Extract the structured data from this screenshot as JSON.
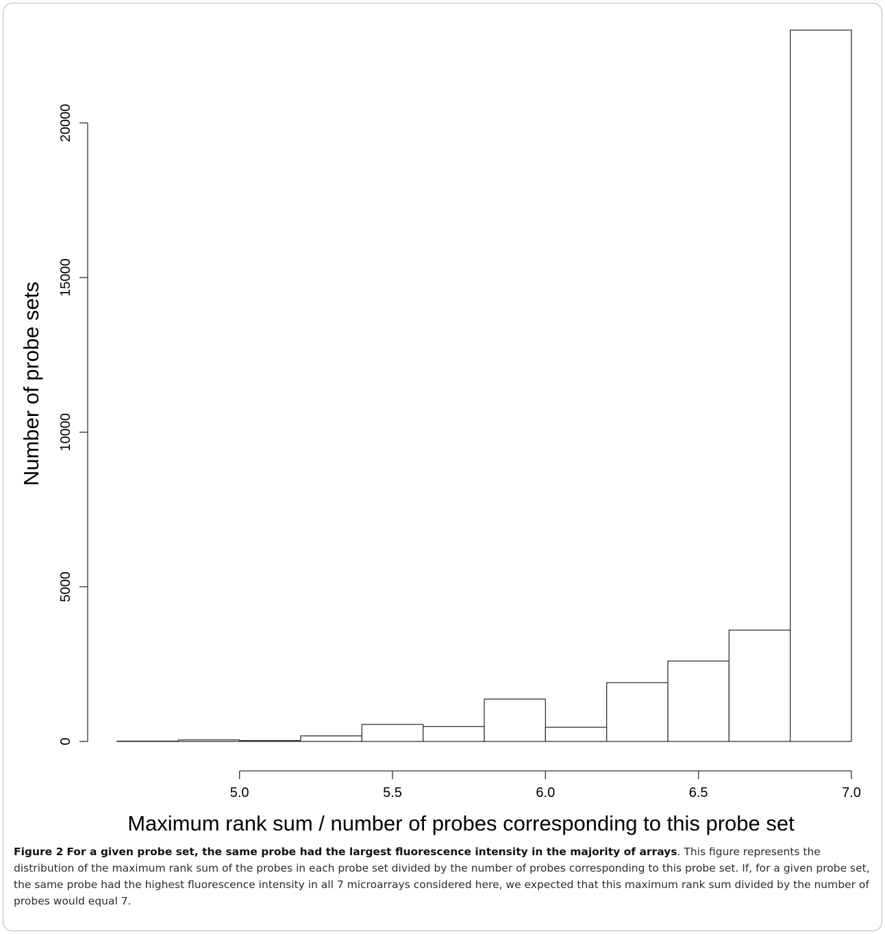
{
  "chart_data": {
    "type": "bar",
    "subtype": "histogram",
    "xlabel": "Maximum rank sum / number of probes corresponding to this probe set",
    "ylabel": "Number of probe sets",
    "xlim": [
      4.6,
      7.0
    ],
    "ylim": [
      0,
      23000
    ],
    "x_ticks": [
      5.0,
      5.5,
      6.0,
      6.5,
      7.0
    ],
    "x_tick_labels": [
      "5.0",
      "5.5",
      "6.0",
      "6.5",
      "7.0"
    ],
    "y_ticks": [
      0,
      5000,
      10000,
      15000,
      20000
    ],
    "y_tick_labels": [
      "0",
      "5000",
      "10000",
      "15000",
      "20000"
    ],
    "bins": [
      {
        "start": 4.6,
        "end": 4.8,
        "count": 10
      },
      {
        "start": 4.8,
        "end": 5.0,
        "count": 50
      },
      {
        "start": 5.0,
        "end": 5.2,
        "count": 30
      },
      {
        "start": 5.2,
        "end": 5.4,
        "count": 180
      },
      {
        "start": 5.4,
        "end": 5.6,
        "count": 550
      },
      {
        "start": 5.6,
        "end": 5.8,
        "count": 480
      },
      {
        "start": 5.8,
        "end": 6.0,
        "count": 1370
      },
      {
        "start": 6.0,
        "end": 6.2,
        "count": 460
      },
      {
        "start": 6.2,
        "end": 6.4,
        "count": 1900
      },
      {
        "start": 6.4,
        "end": 6.6,
        "count": 2600
      },
      {
        "start": 6.6,
        "end": 6.8,
        "count": 3600
      },
      {
        "start": 6.8,
        "end": 7.0,
        "count": 23000
      }
    ],
    "grid": false,
    "bar_fill": "#ffffff",
    "bar_stroke": "#333333"
  },
  "caption": {
    "label": "Figure 2",
    "title": "For a given probe set, the same probe had the largest fluorescence intensity in the majority of arrays",
    "text": ". This figure represents the distribution of the maximum rank sum of the probes in each probe set divided by the number of probes corresponding to this probe set. If, for a given probe set, the same probe had the highest fluorescence intensity in all 7 microarrays considered here, we expected that this maximum rank sum divided by the number of probes would equal 7."
  }
}
